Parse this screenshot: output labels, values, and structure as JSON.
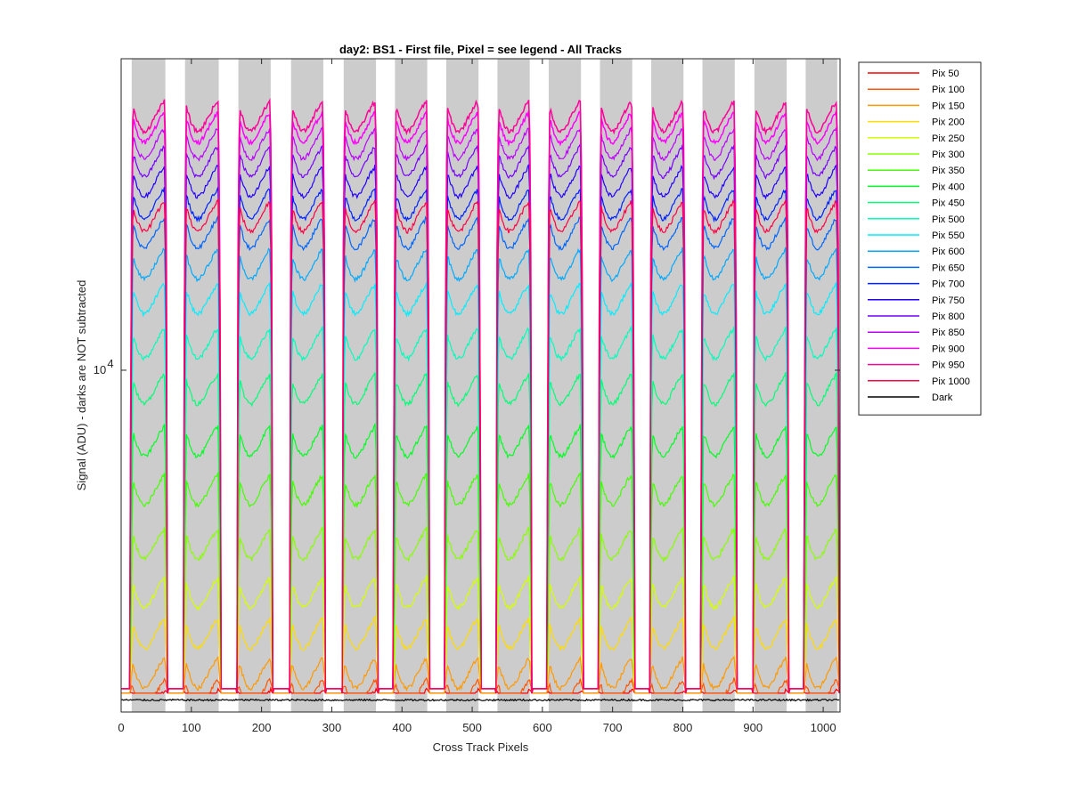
{
  "chart_data": {
    "type": "line",
    "title": "day2: BS1 - First file, Pixel = see legend - All Tracks",
    "xlabel": "Cross Track Pixels",
    "ylabel": "Signal (ADU) - darks are NOT subtracted",
    "xlim": [
      0,
      1024
    ],
    "ylim": [
      1400,
      60000
    ],
    "y_scale": "log",
    "x_ticks": [
      0,
      100,
      200,
      300,
      400,
      500,
      600,
      700,
      800,
      900,
      1000
    ],
    "x_tick_labels": [
      "0",
      "100",
      "200",
      "300",
      "400",
      "500",
      "600",
      "700",
      "800",
      "900",
      "1000"
    ],
    "y_tick_label": {
      "base": "10",
      "exponent": "4",
      "value": 10000
    },
    "legend_position": "outside-right",
    "track_bands": [
      [
        15,
        63
      ],
      [
        91,
        139
      ],
      [
        167,
        213
      ],
      [
        242,
        288
      ],
      [
        317,
        363
      ],
      [
        390,
        436
      ],
      [
        463,
        509
      ],
      [
        536,
        582
      ],
      [
        609,
        655
      ],
      [
        682,
        728
      ],
      [
        755,
        801
      ],
      [
        828,
        874
      ],
      [
        902,
        948
      ],
      [
        975,
        1020
      ]
    ],
    "band_color": "#cccccc",
    "series": [
      {
        "name": "Pix 50",
        "color": "#ff0000",
        "level": 1620
      },
      {
        "name": "Pix 100",
        "color": "#ff5500",
        "level": 1720
      },
      {
        "name": "Pix 150",
        "color": "#ff9900",
        "level": 1950
      },
      {
        "name": "Pix 200",
        "color": "#ffdd00",
        "level": 2450
      },
      {
        "name": "Pix 250",
        "color": "#d4ff00",
        "level": 3100
      },
      {
        "name": "Pix 300",
        "color": "#88ff00",
        "level": 4100
      },
      {
        "name": "Pix 350",
        "color": "#44ff00",
        "level": 5600
      },
      {
        "name": "Pix 400",
        "color": "#00ff22",
        "level": 7400
      },
      {
        "name": "Pix 450",
        "color": "#00ff77",
        "level": 10000
      },
      {
        "name": "Pix 500",
        "color": "#00ffbb",
        "level": 13000
      },
      {
        "name": "Pix 550",
        "color": "#00eeff",
        "level": 16800
      },
      {
        "name": "Pix 600",
        "color": "#00aaff",
        "level": 20500
      },
      {
        "name": "Pix 650",
        "color": "#0066ff",
        "level": 24500
      },
      {
        "name": "Pix 700",
        "color": "#0022ff",
        "level": 29000
      },
      {
        "name": "Pix 750",
        "color": "#2200ff",
        "level": 33000
      },
      {
        "name": "Pix 800",
        "color": "#7700ff",
        "level": 37000
      },
      {
        "name": "Pix 850",
        "color": "#bb00ff",
        "level": 41000
      },
      {
        "name": "Pix 900",
        "color": "#ff00ff",
        "level": 45000
      },
      {
        "name": "Pix 950",
        "color": "#ff0099",
        "level": 48000
      },
      {
        "name": "Pix 1000",
        "color": "#ff0044",
        "level": 27000
      },
      {
        "name": "Dark",
        "color": "#000000",
        "level": 1500
      }
    ]
  }
}
